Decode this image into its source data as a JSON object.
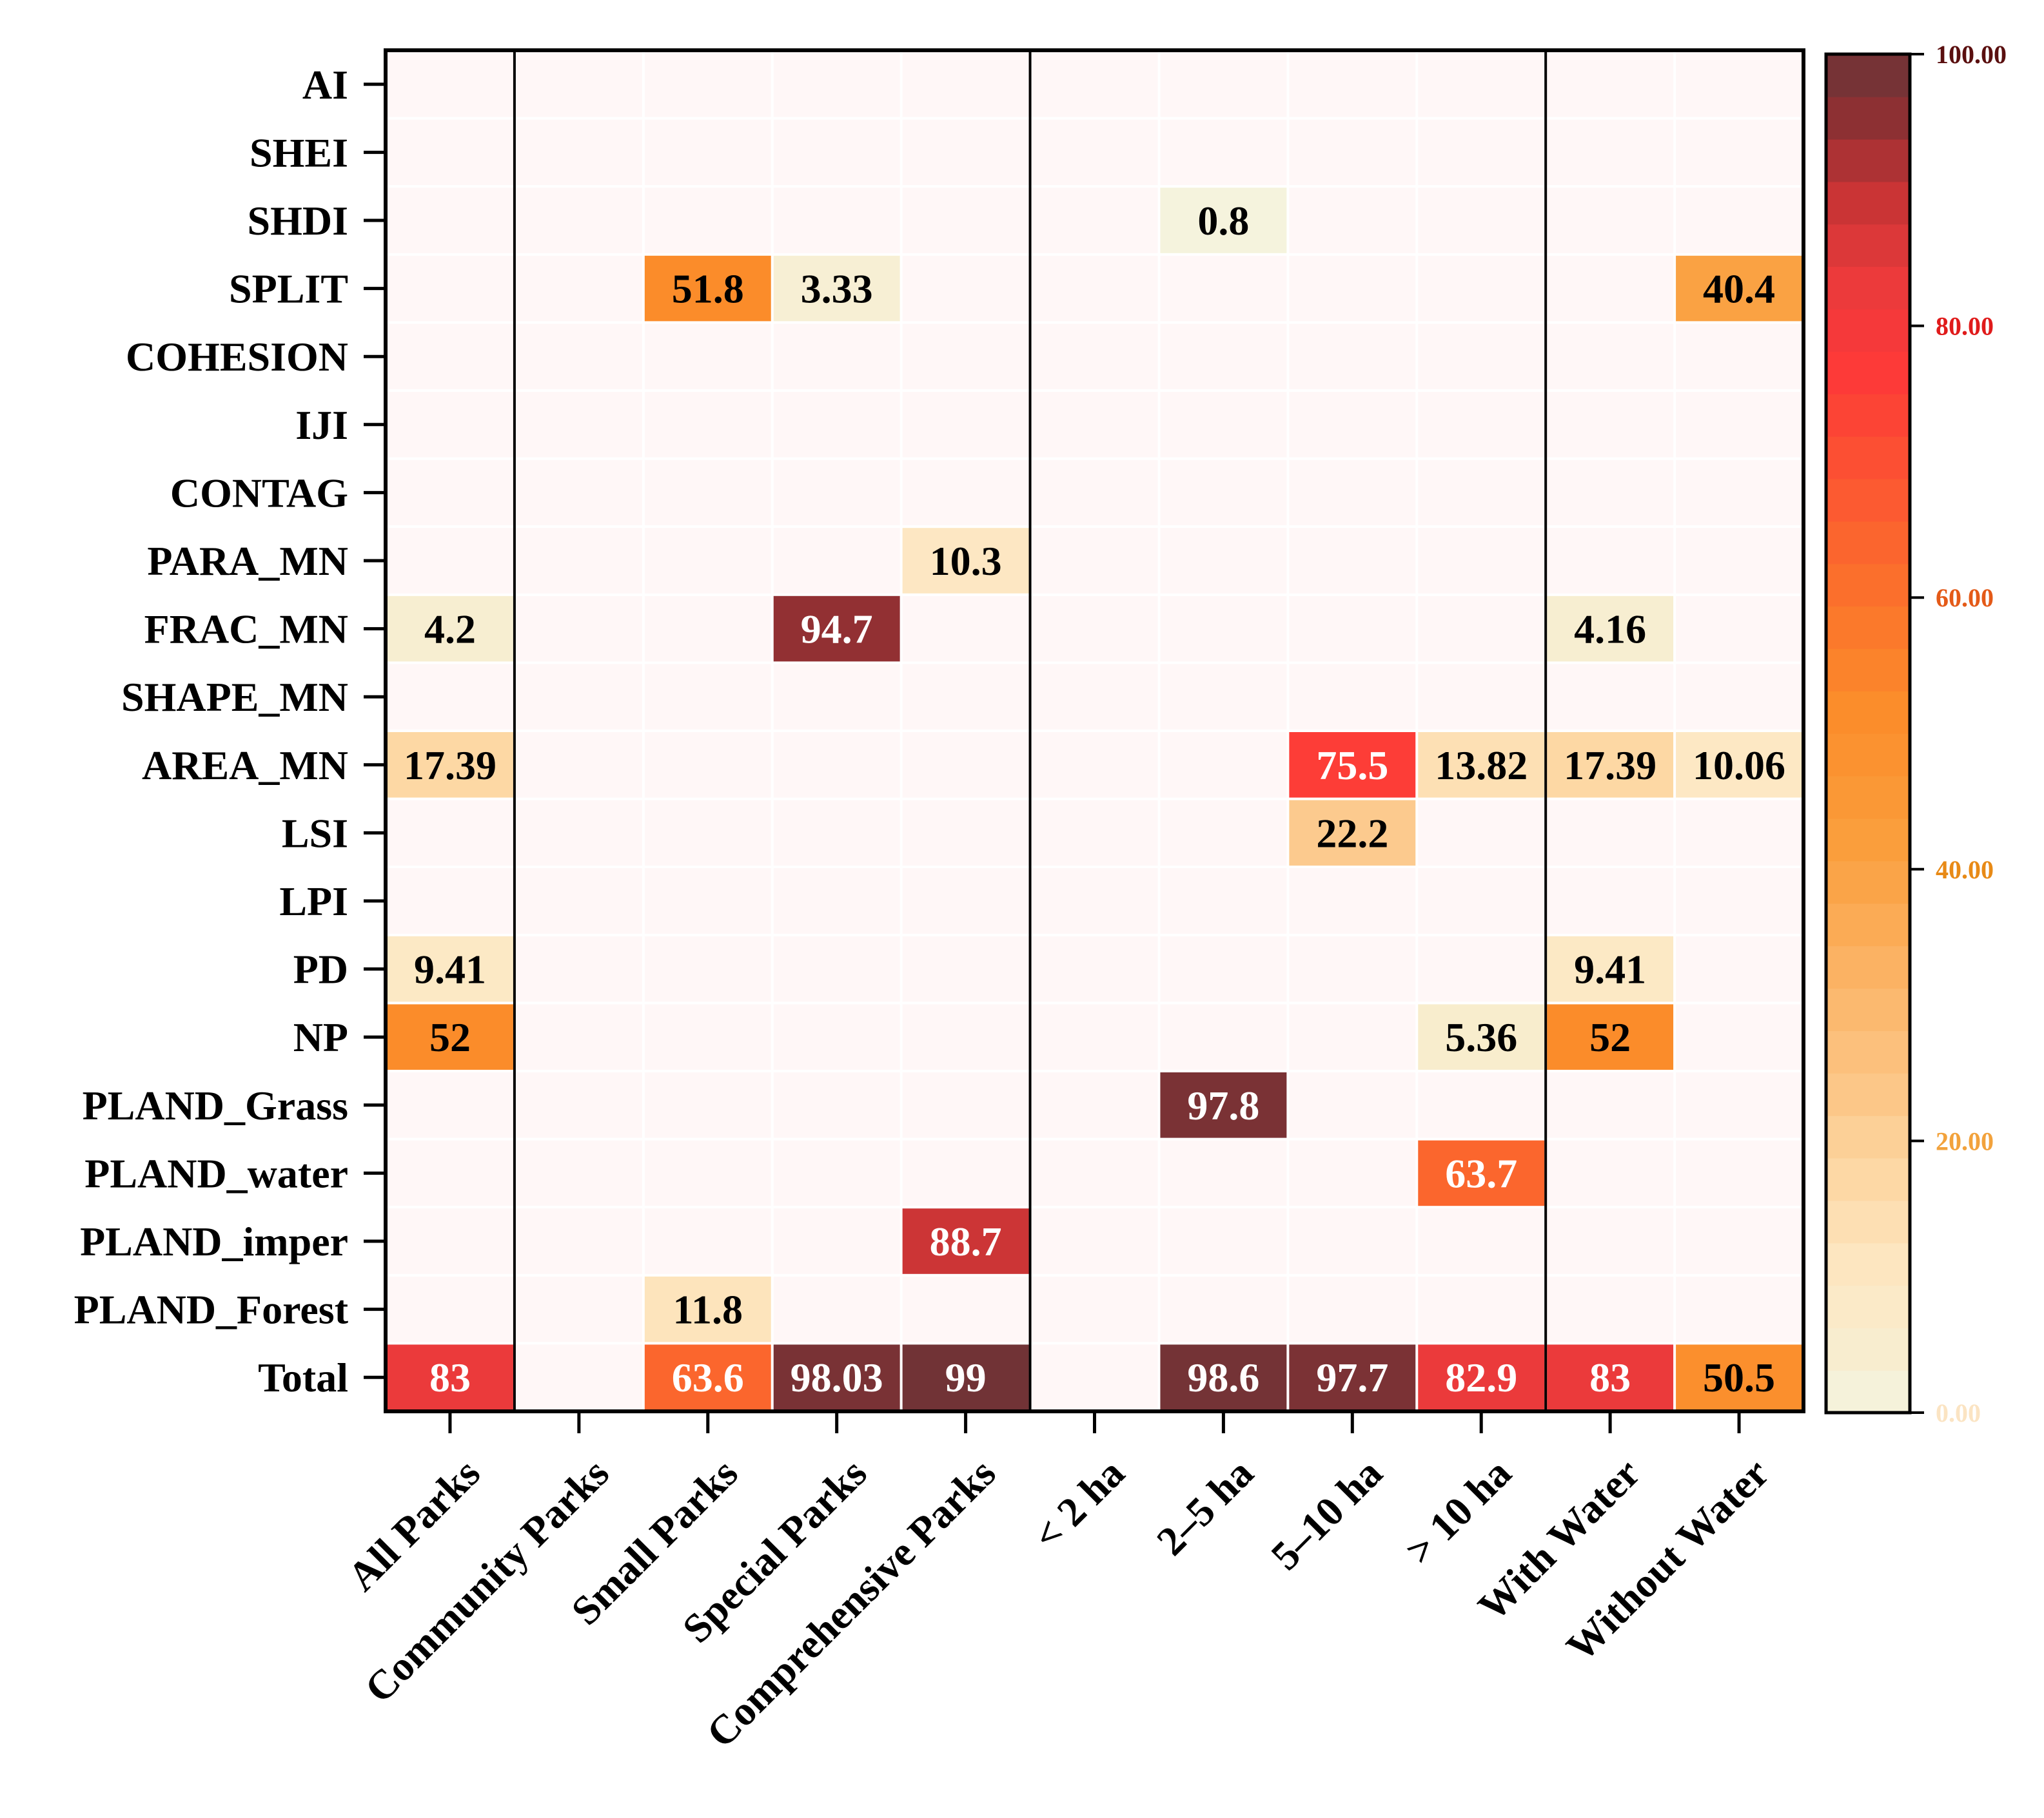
{
  "chart_data": {
    "type": "heatmap",
    "title": "",
    "rows": [
      "AI",
      "SHEI",
      "SHDI",
      "SPLIT",
      "COHESION",
      "IJI",
      "CONTAG",
      "PARA_MN",
      "FRAC_MN",
      "SHAPE_MN",
      "AREA_MN",
      "LSI",
      "LPI",
      "PD",
      "NP",
      "PLAND_Grass",
      "PLAND_water",
      "PLAND_imper",
      "PLAND_Forest",
      "Total"
    ],
    "columns": [
      "All Parks",
      "Community Parks",
      "Small Parks",
      "Special  Parks",
      "Comprehensive Parks",
      "< 2 ha",
      "2–5 ha",
      "5–10 ha",
      "> 10 ha",
      "With Water",
      "Without Water"
    ],
    "group_separators_after_column": [
      "All Parks",
      "Comprehensive Parks",
      "> 10 ha"
    ],
    "cells": [
      {
        "row": "SHDI",
        "col": "2–5 ha",
        "value": 0.8,
        "label": "0.8"
      },
      {
        "row": "SPLIT",
        "col": "Small Parks",
        "value": 51.8,
        "label": "51.8"
      },
      {
        "row": "SPLIT",
        "col": "Special  Parks",
        "value": 3.33,
        "label": "3.33"
      },
      {
        "row": "SPLIT",
        "col": "Without Water",
        "value": 40.4,
        "label": "40.4"
      },
      {
        "row": "PARA_MN",
        "col": "Comprehensive Parks",
        "value": 10.3,
        "label": "10.3"
      },
      {
        "row": "FRAC_MN",
        "col": "All Parks",
        "value": 4.2,
        "label": "4.2"
      },
      {
        "row": "FRAC_MN",
        "col": "Special  Parks",
        "value": 94.7,
        "label": "94.7"
      },
      {
        "row": "FRAC_MN",
        "col": "With Water",
        "value": 4.16,
        "label": "4.16"
      },
      {
        "row": "AREA_MN",
        "col": "All Parks",
        "value": 17.39,
        "label": "17.39"
      },
      {
        "row": "AREA_MN",
        "col": "5–10 ha",
        "value": 75.5,
        "label": "75.5"
      },
      {
        "row": "AREA_MN",
        "col": "> 10 ha",
        "value": 13.82,
        "label": "13.82"
      },
      {
        "row": "AREA_MN",
        "col": "With Water",
        "value": 17.39,
        "label": "17.39"
      },
      {
        "row": "AREA_MN",
        "col": "Without Water",
        "value": 10.06,
        "label": "10.06"
      },
      {
        "row": "LSI",
        "col": "5–10 ha",
        "value": 22.2,
        "label": "22.2"
      },
      {
        "row": "PD",
        "col": "All Parks",
        "value": 9.41,
        "label": "9.41"
      },
      {
        "row": "PD",
        "col": "With Water",
        "value": 9.41,
        "label": "9.41"
      },
      {
        "row": "NP",
        "col": "All Parks",
        "value": 52,
        "label": "52"
      },
      {
        "row": "NP",
        "col": "> 10 ha",
        "value": 5.36,
        "label": "5.36"
      },
      {
        "row": "NP",
        "col": "With Water",
        "value": 52,
        "label": "52"
      },
      {
        "row": "PLAND_Grass",
        "col": "2–5 ha",
        "value": 97.8,
        "label": "97.8"
      },
      {
        "row": "PLAND_water",
        "col": "> 10 ha",
        "value": 63.7,
        "label": "63.7"
      },
      {
        "row": "PLAND_imper",
        "col": "Comprehensive Parks",
        "value": 88.7,
        "label": "88.7"
      },
      {
        "row": "PLAND_Forest",
        "col": "Small Parks",
        "value": 11.8,
        "label": "11.8"
      },
      {
        "row": "Total",
        "col": "All Parks",
        "value": 83,
        "label": "83"
      },
      {
        "row": "Total",
        "col": "Small Parks",
        "value": 63.6,
        "label": "63.6"
      },
      {
        "row": "Total",
        "col": "Special  Parks",
        "value": 98.03,
        "label": "98.03"
      },
      {
        "row": "Total",
        "col": "Comprehensive Parks",
        "value": 99,
        "label": "99"
      },
      {
        "row": "Total",
        "col": "2–5 ha",
        "value": 98.6,
        "label": "98.6"
      },
      {
        "row": "Total",
        "col": "5–10 ha",
        "value": 97.7,
        "label": "97.7"
      },
      {
        "row": "Total",
        "col": "> 10 ha",
        "value": 82.9,
        "label": "82.9"
      },
      {
        "row": "Total",
        "col": "With Water",
        "value": 83,
        "label": "83"
      },
      {
        "row": "Total",
        "col": "Without Water",
        "value": 50.5,
        "label": "50.5"
      }
    ],
    "empty_cell_color": "#fff7f7",
    "colorbar": {
      "min": 0,
      "max": 100,
      "ticks": [
        {
          "value": 0,
          "label": "0.00",
          "color": "#fbe4c3"
        },
        {
          "value": 20,
          "label": "20.00",
          "color": "#f2a23c"
        },
        {
          "value": 40,
          "label": "40.00",
          "color": "#e88a16"
        },
        {
          "value": 60,
          "label": "60.00",
          "color": "#e45a18"
        },
        {
          "value": 80,
          "label": "80.00",
          "color": "#e01b1b"
        },
        {
          "value": 100,
          "label": "100.00",
          "color": "#5a0f0f"
        }
      ],
      "stops": [
        {
          "v": 0,
          "c": "#f4f4e0"
        },
        {
          "v": 5,
          "c": "#f8edce"
        },
        {
          "v": 10,
          "c": "#fde8c4"
        },
        {
          "v": 17,
          "c": "#fdd9a6"
        },
        {
          "v": 23,
          "c": "#fcc88a"
        },
        {
          "v": 32,
          "c": "#fbb466"
        },
        {
          "v": 42,
          "c": "#fa9e3c"
        },
        {
          "v": 52,
          "c": "#fb8c2a"
        },
        {
          "v": 62,
          "c": "#fb6c2c"
        },
        {
          "v": 70,
          "c": "#fc5033"
        },
        {
          "v": 77,
          "c": "#fd3838"
        },
        {
          "v": 84,
          "c": "#e83a3c"
        },
        {
          "v": 90,
          "c": "#c43334"
        },
        {
          "v": 95,
          "c": "#8f3033"
        },
        {
          "v": 100,
          "c": "#6a3437"
        }
      ]
    }
  }
}
